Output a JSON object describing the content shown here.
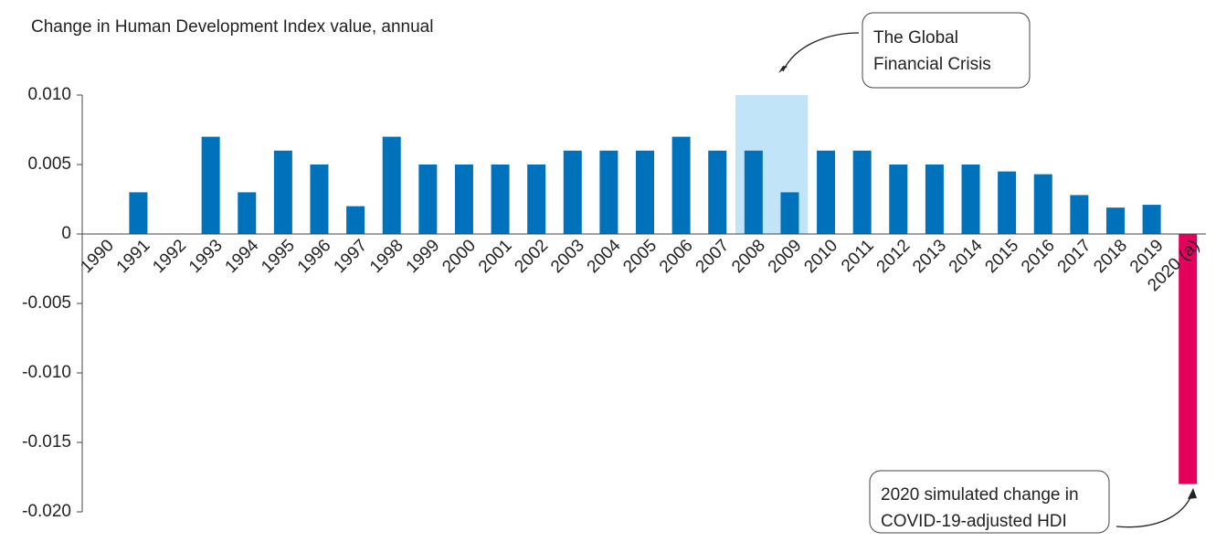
{
  "chart_data": {
    "type": "bar",
    "title": "Change in Human Development Index value, annual",
    "categories": [
      "1990",
      "1991",
      "1992",
      "1993",
      "1994",
      "1995",
      "1996",
      "1997",
      "1998",
      "1999",
      "2000",
      "2001",
      "2002",
      "2003",
      "2004",
      "2005",
      "2006",
      "2007",
      "2008",
      "2009",
      "2010",
      "2011",
      "2012",
      "2013",
      "2014",
      "2015",
      "2016",
      "2017",
      "2018",
      "2019",
      "2020 (a)"
    ],
    "values": [
      null,
      0.003,
      0,
      0.007,
      0.003,
      0.006,
      0.005,
      0.002,
      0.007,
      0.005,
      0.005,
      0.005,
      0.005,
      0.006,
      0.006,
      0.006,
      0.007,
      0.006,
      0.006,
      0.003,
      0.006,
      0.006,
      0.005,
      0.005,
      0.005,
      0.0045,
      0.0043,
      0.0028,
      0.0019,
      0.0021,
      -0.018
    ],
    "colors": [
      "#0072bc",
      "#0072bc",
      "#0072bc",
      "#0072bc",
      "#0072bc",
      "#0072bc",
      "#0072bc",
      "#0072bc",
      "#0072bc",
      "#0072bc",
      "#0072bc",
      "#0072bc",
      "#0072bc",
      "#0072bc",
      "#0072bc",
      "#0072bc",
      "#0072bc",
      "#0072bc",
      "#0072bc",
      "#0072bc",
      "#0072bc",
      "#0072bc",
      "#0072bc",
      "#0072bc",
      "#0072bc",
      "#0072bc",
      "#0072bc",
      "#0072bc",
      "#0072bc",
      "#0072bc",
      "#e5005b"
    ],
    "ylim": [
      -0.02,
      0.01
    ],
    "yticks": [
      {
        "value": 0.01,
        "label": "0.010"
      },
      {
        "value": 0.005,
        "label": "0.005"
      },
      0,
      {
        "value": -0.005,
        "label": "-0.005"
      },
      {
        "value": -0.01,
        "label": "-0.010"
      },
      {
        "value": -0.015,
        "label": "-0.015"
      },
      {
        "value": -0.02,
        "label": "-0.020"
      }
    ],
    "highlight": {
      "from": "2008",
      "to": "2009",
      "color": "#c2e4f8"
    },
    "annotations": [
      {
        "lines": [
          "The Global",
          "Financial Crisis"
        ]
      },
      {
        "lines": [
          "2020 simulated change in",
          "COVID-19-adjusted HDI"
        ]
      }
    ]
  }
}
